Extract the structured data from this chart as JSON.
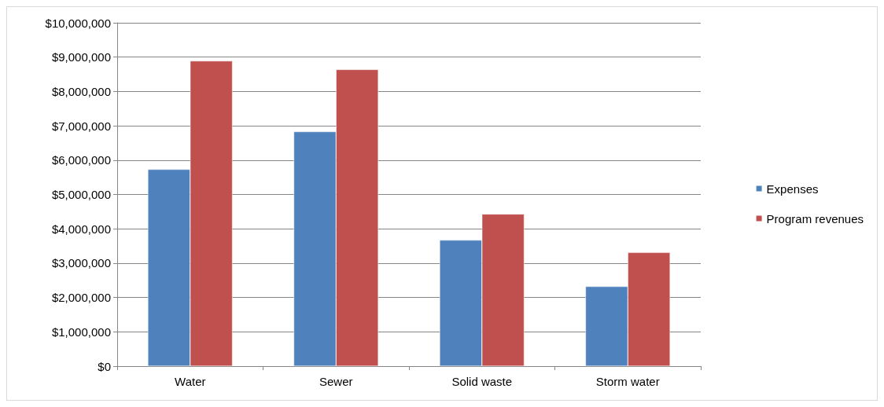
{
  "chart_data": {
    "type": "bar",
    "categories": [
      "Water",
      "Sewer",
      "Solid waste",
      "Storm water"
    ],
    "series": [
      {
        "name": "Expenses",
        "color": "#4f81bd",
        "values": [
          5730000,
          6830000,
          3670000,
          2320000
        ]
      },
      {
        "name": "Program revenues",
        "color": "#c0504d",
        "values": [
          8890000,
          8640000,
          4430000,
          3310000
        ]
      }
    ],
    "ylim": [
      0,
      10000000
    ],
    "yticks": [
      {
        "value": 0,
        "label": "$0"
      },
      {
        "value": 1000000,
        "label": "$1,000,000"
      },
      {
        "value": 2000000,
        "label": "$2,000,000"
      },
      {
        "value": 3000000,
        "label": "$3,000,000"
      },
      {
        "value": 4000000,
        "label": "$4,000,000"
      },
      {
        "value": 5000000,
        "label": "$5,000,000"
      },
      {
        "value": 6000000,
        "label": "$6,000,000"
      },
      {
        "value": 7000000,
        "label": "$7,000,000"
      },
      {
        "value": 8000000,
        "label": "$8,000,000"
      },
      {
        "value": 9000000,
        "label": "$9,000,000"
      },
      {
        "value": 10000000,
        "label": "$10,000,000"
      }
    ],
    "grid": "y",
    "legend": "right"
  }
}
